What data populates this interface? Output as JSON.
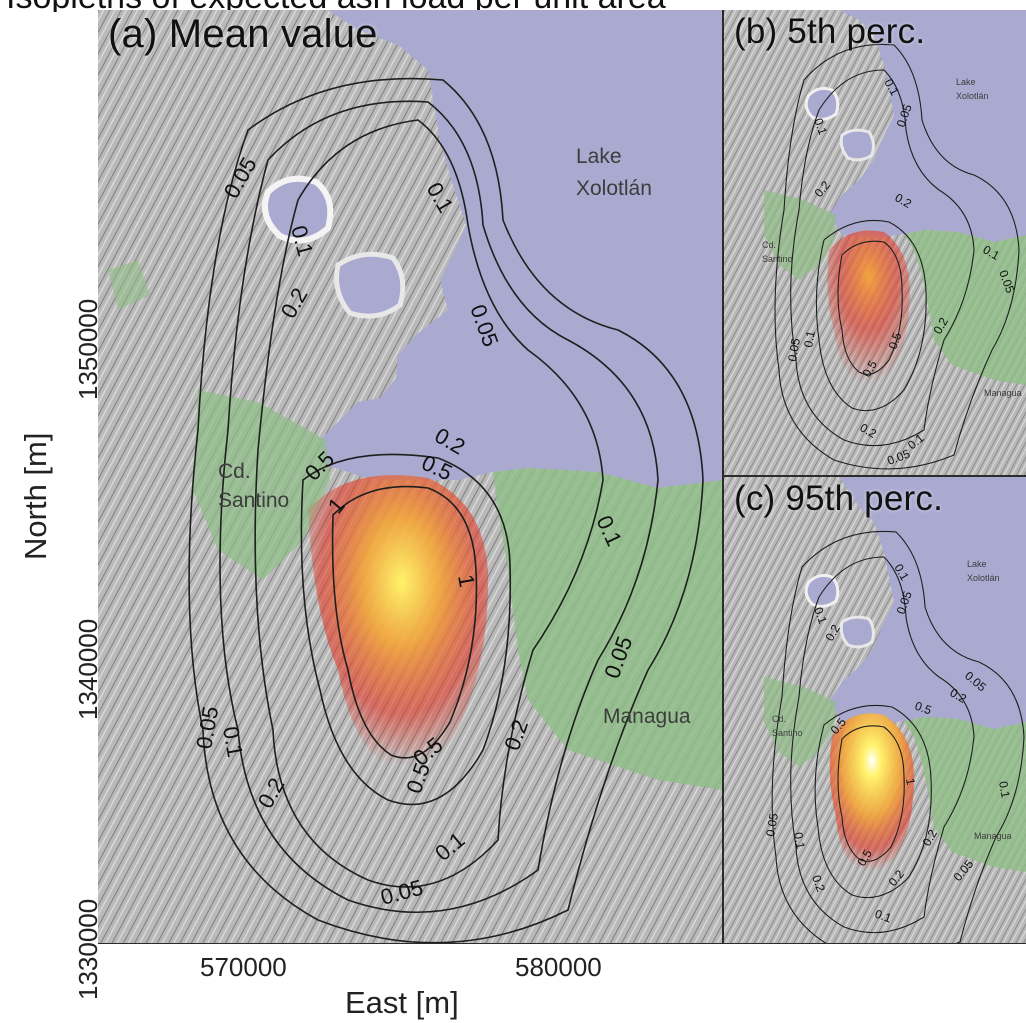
{
  "figure": {
    "top_caption_fragment": "Isopleths of expected ash load per unit area"
  },
  "panels": {
    "a": {
      "label": "(a) Mean value",
      "place_labels": [
        "Lake",
        "Xolotlán",
        "Cd.",
        "Santino",
        "Managua"
      ],
      "contour_levels": [
        "0.05",
        "0.1",
        "0.1",
        "0.2",
        "0.05",
        "0.2",
        "0.5",
        "0.5",
        "0.5",
        "1",
        "1",
        "0.1",
        "0.05",
        "0.05",
        "0.1",
        "0.2",
        "0.2",
        "0.5",
        "0.1",
        "0.05"
      ]
    },
    "b": {
      "label": "(b) 5th perc.",
      "place_labels": [
        "Lake",
        "Xolotlán",
        "Cd.",
        "Santino",
        "Managua"
      ],
      "contour_levels": [
        "0.1",
        "0.1",
        "0.05",
        "0.2",
        "0.2",
        "0.1",
        "0.05",
        "0.05",
        "0.1",
        "0.5",
        "0.2",
        "0.5",
        "0.2",
        "0.1",
        "0.05"
      ]
    },
    "c": {
      "label": "(c) 95th perc.",
      "place_labels": [
        "Lake",
        "Xolotlán",
        "Cd.",
        "Santino",
        "Managua"
      ],
      "contour_levels": [
        "0.1",
        "0.2",
        "0.1",
        "0.05",
        "0.2",
        "0.5",
        "0.5",
        "1",
        "0.05",
        "0.1",
        "0.2",
        "0.5",
        "0.2",
        "0.1",
        "0.05",
        "0.2",
        "0.1",
        "0.05"
      ]
    }
  },
  "axes": {
    "x_title": "East [m]",
    "y_title": "North [m]",
    "x_ticks": [
      "570000",
      "580000"
    ],
    "y_ticks": [
      "1330000",
      "1340000",
      "1350000"
    ]
  },
  "colors": {
    "lake": "#aaaad0",
    "urban": "#8fbe86",
    "hot_core": "#fff36b",
    "hot_mid": "#f3a43a",
    "hot_outer": "#e33a2a",
    "contour": "#1f1f1f",
    "terrain": "#b4b4b4"
  }
}
